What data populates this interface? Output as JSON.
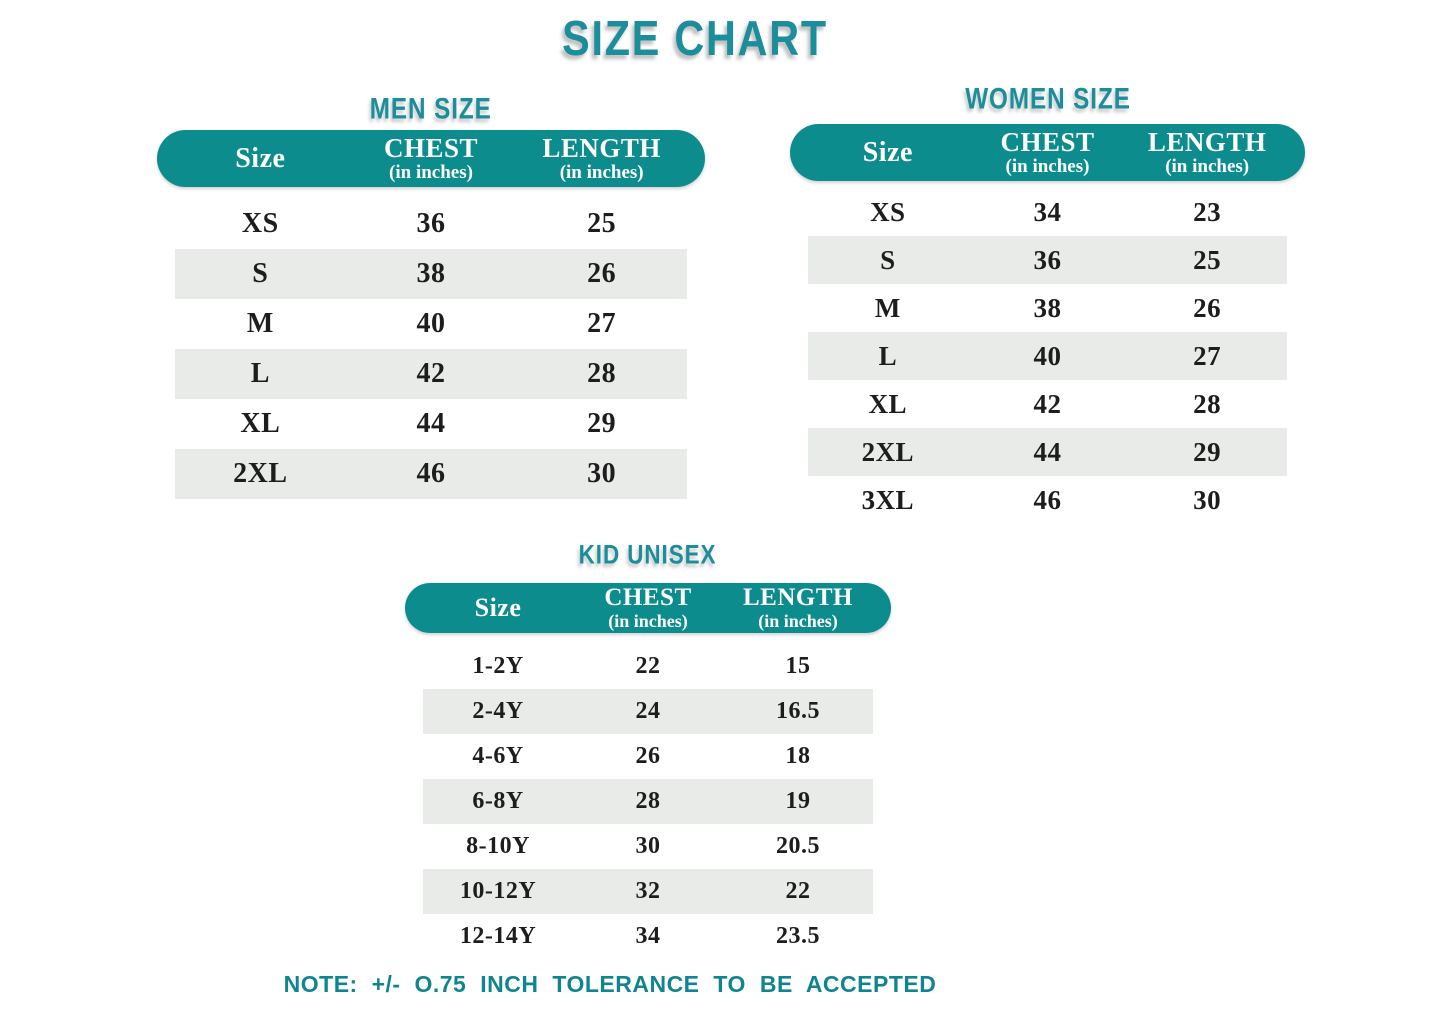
{
  "page": {
    "title": "SIZE CHART",
    "note": "NOTE: +/- O.75 INCH TOLERANCE TO BE ACCEPTED",
    "colors": {
      "pill_teal": "#0d8c8e",
      "heading_teal": "#1c8e9b",
      "stripe_gray": "#e8ebe8",
      "body_text": "#1d1d1d",
      "background": "#ffffff"
    }
  },
  "tables": [
    {
      "title": "MEN SIZE",
      "header": {
        "size": "Size",
        "chest": "CHEST",
        "length": "LENGTH",
        "unit": "(in inches)"
      },
      "rows": [
        [
          "XS",
          "36",
          "25"
        ],
        [
          "S",
          "38",
          "26"
        ],
        [
          "M",
          "40",
          "27"
        ],
        [
          "L",
          "42",
          "28"
        ],
        [
          "XL",
          "44",
          "29"
        ],
        [
          "2XL",
          "46",
          "30"
        ]
      ]
    },
    {
      "title": "WOMEN SIZE",
      "header": {
        "size": "Size",
        "chest": "CHEST",
        "length": "LENGTH",
        "unit": "(in inches)"
      },
      "rows": [
        [
          "XS",
          "34",
          "23"
        ],
        [
          "S",
          "36",
          "25"
        ],
        [
          "M",
          "38",
          "26"
        ],
        [
          "L",
          "40",
          "27"
        ],
        [
          "XL",
          "42",
          "28"
        ],
        [
          "2XL",
          "44",
          "29"
        ],
        [
          "3XL",
          "46",
          "30"
        ]
      ]
    },
    {
      "title": "KID UNISEX",
      "header": {
        "size": "Size",
        "chest": "CHEST",
        "length": "LENGTH",
        "unit": "(in inches)"
      },
      "rows": [
        [
          "1-2Y",
          "22",
          "15"
        ],
        [
          "2-4Y",
          "24",
          "16.5"
        ],
        [
          "4-6Y",
          "26",
          "18"
        ],
        [
          "6-8Y",
          "28",
          "19"
        ],
        [
          "8-10Y",
          "30",
          "20.5"
        ],
        [
          "10-12Y",
          "32",
          "22"
        ],
        [
          "12-14Y",
          "34",
          "23.5"
        ]
      ]
    }
  ]
}
